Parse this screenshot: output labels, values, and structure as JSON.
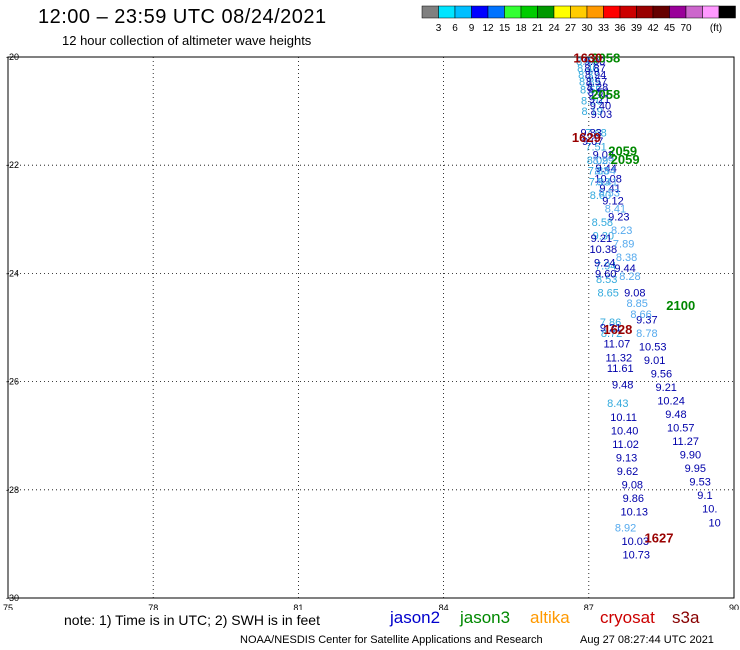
{
  "header": {
    "title": "12:00 – 23:59 UTC 08/24/2021",
    "subtitle": "12 hour collection of altimeter wave heights"
  },
  "colorbar": {
    "colors": [
      "#808080",
      "#00e5ff",
      "#00bfff",
      "#0000ff",
      "#0073ff",
      "#33ff33",
      "#00cc00",
      "#009900",
      "#ffff00",
      "#ffcc00",
      "#ff9900",
      "#ff0000",
      "#cc0000",
      "#990000",
      "#660000",
      "#990099",
      "#cc66cc",
      "#ff99ff",
      "#000000"
    ],
    "labels": [
      "3",
      "6",
      "9",
      "12",
      "15",
      "18",
      "21",
      "24",
      "27",
      "30",
      "33",
      "36",
      "39",
      "42",
      "45",
      "70"
    ],
    "unit": "(ft)"
  },
  "footer": {
    "note": "note:  1) Time is in UTC;  2) SWH is in feet",
    "credit": "NOAA/NESDIS Center for Satellite Applications and Research",
    "timestamp": "Aug 27 08:27:44 UTC 2021",
    "satellites": [
      {
        "name": "jason2",
        "color": "#0000cc"
      },
      {
        "name": "jason3",
        "color": "#008800"
      },
      {
        "name": "altika",
        "color": "#ff9900"
      },
      {
        "name": "cryosat",
        "color": "#cc0000"
      },
      {
        "name": "s3a",
        "color": "#880000"
      }
    ]
  },
  "chart_data": {
    "type": "scatter",
    "title": "12:00 – 23:59 UTC 08/24/2021",
    "subtitle": "12 hour collection of altimeter wave heights",
    "xlim": [
      75,
      90
    ],
    "ylim": [
      -30,
      -20
    ],
    "x_ticks": [
      "75",
      "78",
      "81",
      "84",
      "87",
      "90"
    ],
    "y_ticks": [
      "-20",
      "-22",
      "-24",
      "-26",
      "-28",
      "-30"
    ],
    "grid": true,
    "series": [
      {
        "name": "track-light-blue",
        "color": "#33aadd",
        "points": [
          {
            "x": 86.96,
            "y": -20.07,
            "label": "8.46"
          },
          {
            "x": 86.98,
            "y": -20.2,
            "label": "8.46"
          },
          {
            "x": 87.0,
            "y": -20.32,
            "label": "8.37"
          },
          {
            "x": 87.02,
            "y": -20.45,
            "label": "8.89"
          },
          {
            "x": 87.04,
            "y": -20.6,
            "label": "8.55"
          },
          {
            "x": 87.06,
            "y": -20.8,
            "label": "8.20"
          },
          {
            "x": 87.07,
            "y": -21.0,
            "label": "8.19"
          },
          {
            "x": 87.15,
            "y": -21.4,
            "label": "7.68"
          },
          {
            "x": 87.15,
            "y": -21.65,
            "label": "7.51"
          },
          {
            "x": 87.18,
            "y": -21.9,
            "label": "8.09"
          },
          {
            "x": 87.2,
            "y": -22.1,
            "label": "7.83"
          },
          {
            "x": 87.22,
            "y": -22.3,
            "label": "7.93"
          },
          {
            "x": 87.24,
            "y": -22.55,
            "label": "8.60"
          },
          {
            "x": 87.28,
            "y": -23.05,
            "label": "8.58"
          },
          {
            "x": 87.3,
            "y": -23.3,
            "label": "9.30"
          },
          {
            "x": 87.35,
            "y": -23.85,
            "label": "7.94"
          },
          {
            "x": 87.37,
            "y": -24.1,
            "label": "8.53"
          },
          {
            "x": 87.4,
            "y": -24.35,
            "label": "8.65"
          },
          {
            "x": 87.45,
            "y": -24.9,
            "label": "7.86"
          },
          {
            "x": 87.47,
            "y": -25.1,
            "label": "8.72"
          },
          {
            "x": 87.6,
            "y": -26.4,
            "label": "8.43"
          }
        ]
      },
      {
        "name": "track-navy",
        "color": "#0000aa",
        "points": [
          {
            "x": 87.12,
            "y": -20.07,
            "label": "9.00"
          },
          {
            "x": 87.13,
            "y": -20.2,
            "label": "8.87"
          },
          {
            "x": 87.14,
            "y": -20.32,
            "label": "8.94"
          },
          {
            "x": 87.16,
            "y": -20.45,
            "label": "8.57"
          },
          {
            "x": 87.18,
            "y": -20.55,
            "label": "8.28"
          },
          {
            "x": 87.2,
            "y": -20.65,
            "label": "8.50"
          },
          {
            "x": 87.22,
            "y": -20.78,
            "label": "9.21"
          },
          {
            "x": 87.24,
            "y": -20.9,
            "label": "9.40"
          },
          {
            "x": 87.26,
            "y": -21.05,
            "label": "9.03"
          },
          {
            "x": 87.05,
            "y": -21.4,
            "label": "9.83"
          },
          {
            "x": 87.08,
            "y": -21.55,
            "label": "9.07"
          },
          {
            "x": 87.3,
            "y": -21.8,
            "label": "9.02"
          },
          {
            "x": 87.36,
            "y": -22.05,
            "label": "9.44"
          },
          {
            "x": 87.4,
            "y": -22.25,
            "label": "10.08"
          },
          {
            "x": 87.44,
            "y": -22.42,
            "label": "9.41"
          },
          {
            "x": 87.5,
            "y": -22.65,
            "label": "9.12"
          },
          {
            "x": 87.62,
            "y": -22.95,
            "label": "9.23"
          },
          {
            "x": 87.26,
            "y": -23.35,
            "label": "9.21"
          },
          {
            "x": 87.3,
            "y": -23.55,
            "label": "10.38"
          },
          {
            "x": 87.33,
            "y": -23.8,
            "label": "9.24"
          },
          {
            "x": 87.35,
            "y": -24.0,
            "label": "9.60"
          },
          {
            "x": 87.75,
            "y": -23.9,
            "label": "9.44"
          },
          {
            "x": 87.95,
            "y": -24.35,
            "label": "9.08"
          },
          {
            "x": 87.45,
            "y": -25.0,
            "label": "9.21"
          },
          {
            "x": 87.58,
            "y": -25.3,
            "label": "11.07"
          },
          {
            "x": 87.62,
            "y": -25.55,
            "label": "11.32"
          },
          {
            "x": 87.65,
            "y": -25.75,
            "label": "11.61"
          },
          {
            "x": 87.7,
            "y": -26.05,
            "label": "9.48"
          },
          {
            "x": 87.72,
            "y": -26.65,
            "label": "10.11"
          },
          {
            "x": 87.74,
            "y": -26.9,
            "label": "10.40"
          },
          {
            "x": 87.76,
            "y": -27.15,
            "label": "11.02"
          },
          {
            "x": 87.78,
            "y": -27.4,
            "label": "9.13"
          },
          {
            "x": 87.8,
            "y": -27.65,
            "label": "9.62"
          },
          {
            "x": 87.9,
            "y": -27.9,
            "label": "9.08"
          },
          {
            "x": 87.92,
            "y": -28.15,
            "label": "9.86"
          },
          {
            "x": 87.94,
            "y": -28.4,
            "label": "10.13"
          },
          {
            "x": 87.96,
            "y": -28.95,
            "label": "10.03"
          },
          {
            "x": 87.98,
            "y": -29.2,
            "label": "10.73"
          },
          {
            "x": 88.2,
            "y": -24.85,
            "label": "9.37"
          },
          {
            "x": 88.32,
            "y": -25.35,
            "label": "10.53"
          },
          {
            "x": 88.36,
            "y": -25.6,
            "label": "9.01"
          },
          {
            "x": 88.5,
            "y": -25.85,
            "label": "9.56"
          },
          {
            "x": 88.6,
            "y": -26.1,
            "label": "9.21"
          },
          {
            "x": 88.7,
            "y": -26.35,
            "label": "10.24"
          },
          {
            "x": 88.8,
            "y": -26.6,
            "label": "9.48"
          },
          {
            "x": 88.9,
            "y": -26.85,
            "label": "10.57"
          },
          {
            "x": 89.0,
            "y": -27.1,
            "label": "11.27"
          },
          {
            "x": 89.1,
            "y": -27.35,
            "label": "9.90"
          },
          {
            "x": 89.2,
            "y": -27.6,
            "label": "9.95"
          },
          {
            "x": 89.3,
            "y": -27.85,
            "label": "9.53"
          },
          {
            "x": 89.4,
            "y": -28.1,
            "label": "9.1"
          },
          {
            "x": 89.5,
            "y": -28.35,
            "label": "10."
          },
          {
            "x": 89.6,
            "y": -28.6,
            "label": "10"
          }
        ]
      },
      {
        "name": "track-pale-blue",
        "color": "#55aaee",
        "points": [
          {
            "x": 87.3,
            "y": -21.9,
            "label": "8.29"
          },
          {
            "x": 87.34,
            "y": -22.1,
            "label": "8.84"
          },
          {
            "x": 87.38,
            "y": -22.3,
            "label": "8.41"
          },
          {
            "x": 87.42,
            "y": -22.5,
            "label": "8.53"
          },
          {
            "x": 87.55,
            "y": -22.8,
            "label": "8.41"
          },
          {
            "x": 87.68,
            "y": -23.2,
            "label": "8.23"
          },
          {
            "x": 87.72,
            "y": -23.45,
            "label": "7.89"
          },
          {
            "x": 87.78,
            "y": -23.7,
            "label": "8.38"
          },
          {
            "x": 87.85,
            "y": -24.05,
            "label": "8.28"
          },
          {
            "x": 88.0,
            "y": -24.55,
            "label": "8.85"
          },
          {
            "x": 88.08,
            "y": -24.75,
            "label": "8.66"
          },
          {
            "x": 88.2,
            "y": -25.1,
            "label": "8.78"
          },
          {
            "x": 87.76,
            "y": -28.7,
            "label": "8.92"
          }
        ]
      },
      {
        "name": "time-labels-green",
        "color": "#008800",
        "points": [
          {
            "x": 87.35,
            "y": -20.03,
            "label": "2058"
          },
          {
            "x": 87.35,
            "y": -20.7,
            "label": "2058"
          },
          {
            "x": 87.7,
            "y": -21.75,
            "label": "2059"
          },
          {
            "x": 87.75,
            "y": -21.9,
            "label": "2059"
          },
          {
            "x": 88.9,
            "y": -24.6,
            "label": "2100"
          }
        ]
      },
      {
        "name": "time-labels-red",
        "color": "#990000",
        "points": [
          {
            "x": 86.98,
            "y": -20.03,
            "label": "1630"
          },
          {
            "x": 86.95,
            "y": -21.5,
            "label": "1629"
          },
          {
            "x": 87.6,
            "y": -25.05,
            "label": "1628"
          },
          {
            "x": 88.45,
            "y": -28.9,
            "label": "1627"
          }
        ]
      }
    ]
  }
}
